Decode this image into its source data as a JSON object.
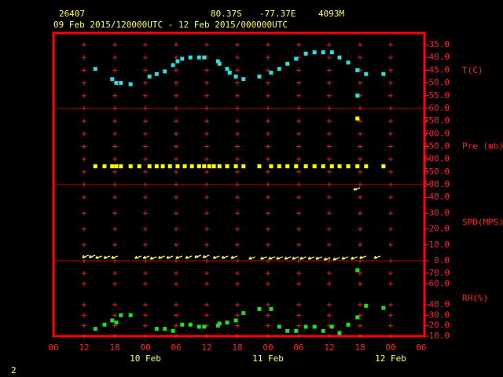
{
  "header": {
    "station": "26407",
    "lat": "80.37S",
    "lon": "-77.37E",
    "elevation": "4093M",
    "period": "09 Feb 2015/120000UTC - 12 Feb 2015/000000UTC",
    "page": "2"
  },
  "time_axis": {
    "xlim": [
      6,
      78
    ],
    "xticks": [
      {
        "value": 6,
        "label": "06"
      },
      12,
      18,
      {
        "value": 24,
        "label": "00"
      },
      {
        "value": 30,
        "label": "06"
      },
      {
        "value": 36,
        "label": "12"
      },
      {
        "value": 42,
        "label": "18"
      },
      {
        "value": 48,
        "label": "00"
      },
      {
        "value": 54,
        "label": "06"
      },
      {
        "value": 60,
        "label": "12"
      },
      {
        "value": 66,
        "label": "18"
      },
      {
        "value": 72,
        "label": "00"
      },
      {
        "value": 78,
        "label": "06"
      }
    ],
    "date_labels": [
      {
        "value": 24,
        "label": "10 Feb"
      },
      {
        "value": 48,
        "label": "11 Feb"
      },
      {
        "value": 72,
        "label": "12 Feb"
      }
    ]
  },
  "chart_data": [
    {
      "type": "scatter",
      "ylabel": "T(C)",
      "color": "#33dddd",
      "ylim": [
        -60,
        -30.4
      ],
      "yticks": [
        {
          "value": -60,
          "label": "-60.0"
        },
        {
          "value": -55,
          "label": "-55.0"
        },
        {
          "value": -50,
          "label": "-50.0"
        },
        {
          "value": -45,
          "label": "-45.0"
        },
        {
          "value": -40,
          "label": "-40.0"
        },
        {
          "value": -35,
          "label": "-35.0"
        }
      ],
      "x": [
        14.2,
        17.5,
        18.3,
        19.2,
        21.1,
        24.8,
        26.2,
        27.8,
        29.4,
        30.3,
        31.2,
        32.8,
        34.5,
        35.5,
        38.2,
        38.5,
        40,
        40.5,
        41.7,
        43.2,
        46.3,
        48.6,
        50.2,
        51.8,
        53.5,
        55.4,
        57.1,
        58.8,
        60.5,
        62,
        63.7,
        65.5,
        65.5,
        67.2,
        70.6
      ],
      "values": [
        -44.5,
        -48.5,
        -50,
        -50,
        -50.5,
        -47.5,
        -46.5,
        -45.5,
        -43,
        -41.5,
        -40.5,
        -40,
        -40,
        -40,
        -41.5,
        -42.5,
        -44.5,
        -46,
        -47.5,
        -48.5,
        -47.5,
        -46,
        -44.5,
        -42.5,
        -40.5,
        -38.5,
        -38,
        -38,
        -38,
        -40,
        -42,
        -45,
        -55,
        -46.5,
        -46.5
      ]
    },
    {
      "type": "scatter",
      "ylabel": "Pre (mb)",
      "color": "#ffff00",
      "ylim": [
        500,
        800
      ],
      "yticks": [
        {
          "value": 500,
          "label": "500.0"
        },
        {
          "value": 550,
          "label": "550.0"
        },
        {
          "value": 600,
          "label": "600.0"
        },
        {
          "value": 650,
          "label": "650.0"
        },
        {
          "value": 700,
          "label": "700.0"
        },
        {
          "value": 750,
          "label": "750.0"
        }
      ],
      "x": [
        14.2,
        16,
        17.5,
        18.3,
        19.2,
        21.1,
        22.8,
        24.8,
        26.2,
        27.4,
        28.8,
        30.3,
        31.7,
        33.1,
        34.5,
        35.5,
        36.5,
        37.4,
        38.5,
        40,
        41.7,
        43.2,
        46.3,
        48.6,
        50.2,
        51.8,
        53.5,
        55.4,
        57.1,
        58.8,
        60.5,
        62,
        63.7,
        65.5,
        65.5,
        67.2,
        70.6
      ],
      "values": [
        572,
        572,
        572,
        572,
        572,
        572,
        572,
        572,
        572,
        572,
        572,
        572,
        572,
        572,
        572,
        572,
        572,
        572,
        572,
        572,
        572,
        572,
        572,
        572,
        572,
        572,
        572,
        572,
        572,
        572,
        572,
        572,
        572,
        572,
        760,
        572,
        572
      ]
    },
    {
      "type": "wind",
      "ylabel": "SPD(MPS)",
      "color": "#ffff66",
      "ylim": [
        0,
        48
      ],
      "yticks": [
        {
          "value": 0,
          "label": "0.0"
        },
        {
          "value": 10,
          "label": "10.0"
        },
        {
          "value": 20,
          "label": "20.0"
        },
        {
          "value": 30,
          "label": "30.0"
        },
        {
          "value": 40,
          "label": "40.0"
        }
      ],
      "x": [
        12.9,
        14.2,
        15.5,
        17.1,
        18.6,
        23.2,
        24.8,
        26.2,
        27.8,
        29.4,
        31.2,
        33.1,
        34.9,
        36.5,
        38.5,
        40.2,
        42,
        45.5,
        47.8,
        49.4,
        50.9,
        52.5,
        54,
        55.5,
        57.1,
        58.6,
        60.2,
        62,
        63.7,
        65.5,
        66,
        67.2,
        70
      ],
      "values": [
        3.5,
        3.5,
        3,
        3,
        3,
        3,
        3,
        2.5,
        3,
        3,
        3,
        3,
        3.5,
        3.5,
        3,
        3,
        3,
        2.5,
        2.5,
        2.5,
        2.5,
        2.5,
        2.5,
        2.5,
        2.5,
        2.5,
        2,
        2,
        2.5,
        2.5,
        46,
        3,
        3
      ]
    },
    {
      "type": "scatter",
      "ylabel": "RH(%)",
      "color": "#22dd22",
      "ylim": [
        10,
        82
      ],
      "yticks": [
        {
          "value": 10,
          "label": "10.0"
        },
        {
          "value": 20,
          "label": "20.0"
        },
        {
          "value": 30,
          "label": "30.0"
        },
        {
          "value": 40,
          "label": "40.0"
        },
        {
          "value": 60,
          "label": "60.0"
        },
        {
          "value": 70,
          "label": "70.0"
        }
      ],
      "x": [
        14.2,
        16,
        17.5,
        18.3,
        19.2,
        21.1,
        26.2,
        27.8,
        29.4,
        31.2,
        32.8,
        34.5,
        35.5,
        38.2,
        38.5,
        40,
        41.7,
        43.2,
        46.3,
        48.6,
        50.2,
        51.8,
        53.5,
        55.4,
        57.1,
        58.8,
        60.5,
        62,
        63.7,
        65.5,
        65.5,
        67.2,
        70.6
      ],
      "values": [
        17,
        21,
        25,
        23,
        30,
        30,
        17,
        17,
        15,
        21,
        21,
        19,
        19,
        20,
        22,
        23,
        25,
        32,
        36,
        36,
        19,
        15,
        15,
        19,
        19,
        15,
        19,
        13,
        21,
        28,
        73,
        39,
        37
      ]
    }
  ]
}
